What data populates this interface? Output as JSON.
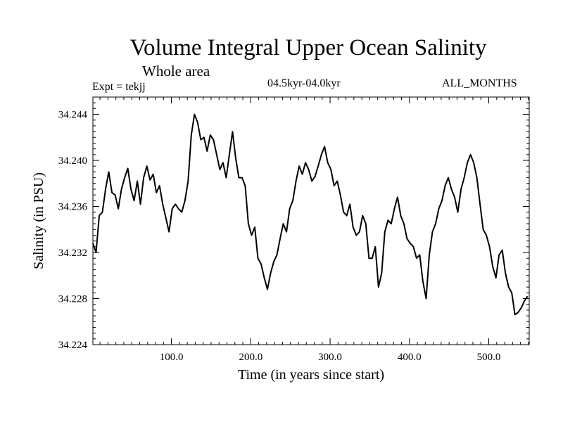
{
  "chart_data": {
    "type": "line",
    "title": "Volume Integral Upper Ocean Salinity",
    "subtitle": "Whole area",
    "expt_label": "Expt = tekjj",
    "period_label": "04.5kyr-04.0kyr",
    "months_label": "ALL_MONTHS",
    "xlabel": "Time (in years since start)",
    "ylabel": "Salinity (in PSU)",
    "xlim": [
      1,
      551
    ],
    "ylim": [
      34.224,
      34.2455
    ],
    "x_ticks": [
      100,
      200,
      300,
      400,
      500
    ],
    "x_tick_labels": [
      "100.0",
      "200.0",
      "300.0",
      "400.0",
      "500.0"
    ],
    "y_ticks": [
      34.224,
      34.228,
      34.232,
      34.236,
      34.24,
      34.244
    ],
    "y_tick_labels": [
      "34.224",
      "34.228",
      "34.232",
      "34.236",
      "34.240",
      "34.244"
    ],
    "grid": false,
    "series": [
      {
        "name": "Salinity",
        "x": [
          1,
          5,
          9,
          13,
          17,
          21,
          25,
          29,
          33,
          37,
          41,
          45,
          49,
          53,
          57,
          61,
          65,
          69,
          73,
          77,
          81,
          85,
          89,
          93,
          97,
          101,
          105,
          109,
          113,
          117,
          121,
          125,
          129,
          133,
          137,
          141,
          145,
          149,
          153,
          157,
          161,
          165,
          169,
          173,
          177,
          181,
          185,
          189,
          193,
          197,
          201,
          205,
          209,
          213,
          217,
          221,
          225,
          229,
          233,
          237,
          241,
          245,
          249,
          253,
          257,
          261,
          265,
          269,
          273,
          277,
          281,
          285,
          289,
          293,
          297,
          301,
          305,
          309,
          313,
          317,
          321,
          325,
          329,
          333,
          337,
          341,
          345,
          349,
          353,
          357,
          361,
          365,
          369,
          373,
          377,
          381,
          385,
          389,
          393,
          397,
          401,
          405,
          409,
          413,
          417,
          421,
          425,
          429,
          433,
          437,
          441,
          445,
          449,
          453,
          457,
          461,
          465,
          469,
          473,
          477,
          481,
          485,
          489,
          493,
          497,
          501,
          505,
          509,
          513,
          517,
          521,
          525,
          529,
          533,
          537,
          541,
          545,
          549
        ],
        "values": [
          34.2328,
          34.232,
          34.2352,
          34.2355,
          34.2375,
          34.239,
          34.2372,
          34.237,
          34.2358,
          34.2375,
          34.2385,
          34.2393,
          34.2375,
          34.2365,
          34.2382,
          34.2362,
          34.2385,
          34.2395,
          34.2383,
          34.2388,
          34.2372,
          34.2378,
          34.2362,
          34.235,
          34.2338,
          34.2358,
          34.2362,
          34.2358,
          34.2355,
          34.2365,
          34.2382,
          34.2422,
          34.244,
          34.2433,
          34.2418,
          34.242,
          34.2408,
          34.2422,
          34.2418,
          34.2405,
          34.2392,
          34.2398,
          34.2385,
          34.2405,
          34.2425,
          34.2402,
          34.2385,
          34.2385,
          34.2378,
          34.2345,
          34.2335,
          34.2342,
          34.2315,
          34.231,
          34.2298,
          34.2288,
          34.2302,
          34.2312,
          34.2318,
          34.2332,
          34.2345,
          34.2338,
          34.2358,
          34.2365,
          34.2382,
          34.2395,
          34.2388,
          34.2398,
          34.2392,
          34.2382,
          34.2386,
          34.2395,
          34.2405,
          34.2412,
          34.2398,
          34.2392,
          34.2378,
          34.2382,
          34.237,
          34.2355,
          34.2352,
          34.2362,
          34.2342,
          34.2335,
          34.2338,
          34.2352,
          34.2345,
          34.2315,
          34.2315,
          34.2325,
          34.229,
          34.2302,
          34.2338,
          34.2348,
          34.2345,
          34.2358,
          34.2368,
          34.2352,
          34.2345,
          34.2332,
          34.2328,
          34.2325,
          34.2315,
          34.2318,
          34.2295,
          34.228,
          34.2318,
          34.2338,
          34.2345,
          34.2358,
          34.2365,
          34.2378,
          34.2385,
          34.2375,
          34.2368,
          34.2355,
          34.2375,
          34.2385,
          34.2398,
          34.2405,
          34.2398,
          34.2385,
          34.2362,
          34.234,
          34.2335,
          34.2325,
          34.2308,
          34.2298,
          34.2318,
          34.2322,
          34.2302,
          34.229,
          34.2285,
          34.2266,
          34.2268,
          34.2272,
          34.2278,
          34.2282
        ]
      }
    ]
  }
}
